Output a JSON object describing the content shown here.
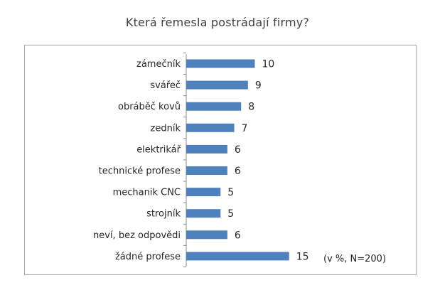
{
  "chart_data": {
    "type": "bar",
    "orientation": "horizontal",
    "title": "Která řemesla postrádají firmy?",
    "categories": [
      "zámečník",
      "svářeč",
      "obráběč kovů",
      "zedník",
      "elektrikář",
      "technické profese",
      "mechanik CNC",
      "strojník",
      "neví, bez odpovědi",
      "žádné profese"
    ],
    "values": [
      10,
      9,
      8,
      7,
      6,
      6,
      5,
      5,
      6,
      15
    ],
    "data_labels": [
      "10",
      "9",
      "8",
      "7",
      "6",
      "6",
      "5",
      "5",
      "6",
      "15"
    ],
    "note": "(v %, N=200)",
    "bar_color": "#4f81bd",
    "grid": false,
    "legend": "none"
  }
}
